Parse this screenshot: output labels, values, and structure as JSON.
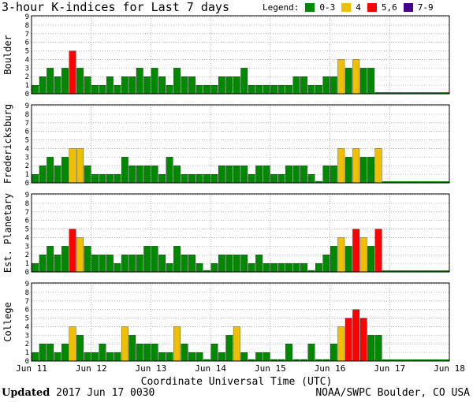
{
  "header": {
    "title": "3-hour K-indices for Last 7 days",
    "legend_label": "Legend:",
    "legend": [
      {
        "label": "0-3",
        "color": "#008800"
      },
      {
        "label": "4",
        "color": "#f0c000"
      },
      {
        "label": "5,6",
        "color": "#ff0000"
      },
      {
        "label": "7-9",
        "color": "#440088"
      }
    ]
  },
  "footer": {
    "updated_label": "Updated",
    "updated_value": "2017 Jun 17 0030",
    "credit": "NOAA/SWPC Boulder, CO USA"
  },
  "chart_data": {
    "type": "bar",
    "xlabel": "Coordinate Universal Time (UTC)",
    "x_ticks": [
      "Jun 11",
      "Jun 12",
      "Jun 13",
      "Jun 14",
      "Jun 15",
      "Jun 16",
      "Jun 17",
      "Jun 18"
    ],
    "ylim": [
      0,
      9
    ],
    "y_ticks": [
      "0",
      "1",
      "2",
      "3",
      "4",
      "5",
      "6",
      "7",
      "8",
      "9"
    ],
    "bars_per_day": 8,
    "series": [
      {
        "name": "Boulder",
        "values": [
          1,
          2,
          3,
          2,
          3,
          5,
          3,
          2,
          1,
          1,
          2,
          1,
          2,
          2,
          3,
          2,
          3,
          2,
          1,
          3,
          2,
          2,
          1,
          1,
          1,
          2,
          2,
          2,
          3,
          1,
          1,
          1,
          1,
          1,
          1,
          2,
          2,
          1,
          1,
          2,
          2,
          4,
          3,
          4,
          3,
          3
        ]
      },
      {
        "name": "Fredericksburg",
        "values": [
          1,
          2,
          3,
          2,
          3,
          4,
          4,
          2,
          1,
          1,
          1,
          1,
          3,
          2,
          2,
          2,
          2,
          1,
          3,
          2,
          1,
          1,
          1,
          1,
          1,
          2,
          2,
          2,
          2,
          1,
          2,
          2,
          1,
          1,
          2,
          2,
          2,
          1,
          0,
          2,
          2,
          4,
          3,
          4,
          3,
          3,
          4
        ]
      },
      {
        "name": "Est. Planetary",
        "values": [
          1,
          2,
          3,
          2,
          3,
          5,
          4,
          3,
          2,
          2,
          2,
          1,
          2,
          2,
          2,
          3,
          3,
          2,
          1,
          3,
          2,
          2,
          1,
          0,
          1,
          2,
          2,
          2,
          2,
          1,
          2,
          1,
          1,
          1,
          1,
          1,
          1,
          0,
          1,
          2,
          3,
          4,
          3,
          5,
          4,
          3,
          5
        ]
      },
      {
        "name": "College",
        "values": [
          1,
          2,
          2,
          1,
          2,
          4,
          3,
          1,
          1,
          2,
          1,
          1,
          4,
          3,
          2,
          2,
          2,
          1,
          1,
          4,
          2,
          1,
          1,
          0,
          2,
          1,
          3,
          4,
          1,
          0,
          1,
          1,
          0,
          0,
          2,
          0,
          0,
          2,
          0,
          0,
          2,
          4,
          5,
          6,
          5,
          3,
          3
        ]
      }
    ]
  }
}
